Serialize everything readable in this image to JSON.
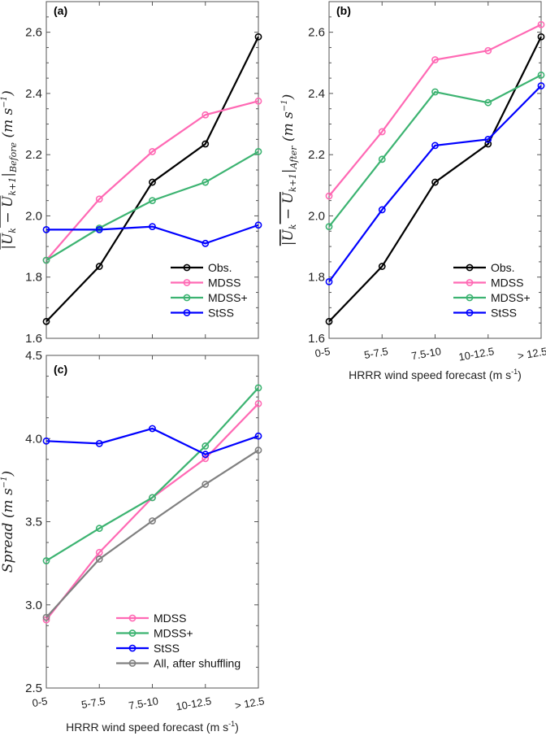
{
  "chart_data": [
    {
      "type": "line",
      "panel_label": "(a)",
      "categories": [
        "0-5",
        "5-7.5",
        "7.5-10",
        "10-12.5",
        "> 12.5"
      ],
      "show_xticklabels": false,
      "xlabel": "",
      "ylabel": {
        "main": "|U",
        "sub1": "k",
        "mid": " − U",
        "sub2": "k+1",
        "close": "|",
        "sub3": "Before",
        "unit": " (m s",
        "exp": "−1",
        "end": ")"
      },
      "ylim": [
        1.6,
        2.7
      ],
      "yticks": [
        "1.6",
        "1.8",
        "2.0",
        "2.2",
        "2.4",
        "2.6"
      ],
      "grid": false,
      "legend_placement": "bottom-right",
      "series": [
        {
          "name": "Obs.",
          "color": "#000000",
          "values": [
            1.655,
            1.835,
            2.11,
            2.235,
            2.585
          ]
        },
        {
          "name": "MDSS",
          "color": "#ff69b4",
          "values": [
            1.855,
            2.055,
            2.21,
            2.33,
            2.375
          ]
        },
        {
          "name": "MDSS+",
          "color": "#3cb371",
          "values": [
            1.855,
            1.96,
            2.05,
            2.11,
            2.21
          ]
        },
        {
          "name": "StSS",
          "color": "#0000ff",
          "values": [
            1.955,
            1.955,
            1.965,
            1.91,
            1.97
          ]
        }
      ]
    },
    {
      "type": "line",
      "panel_label": "(b)",
      "categories": [
        "0-5",
        "5-7.5",
        "7.5-10",
        "10-12.5",
        "> 12.5"
      ],
      "show_xticklabels": true,
      "xlabel": {
        "text": "HRRR wind speed forecast (m s",
        "exp": "-1",
        "end": ")"
      },
      "ylabel": {
        "main": "|U",
        "sub1": "k",
        "mid": " − U",
        "sub2": "k+1",
        "close": "|",
        "sub3": "After",
        "unit": " (m s",
        "exp": "−1",
        "end": ")"
      },
      "ylim": [
        1.6,
        2.7
      ],
      "yticks": [
        "1.6",
        "1.8",
        "2.0",
        "2.2",
        "2.4",
        "2.6"
      ],
      "grid": false,
      "legend_placement": "bottom-right",
      "series": [
        {
          "name": "Obs.",
          "color": "#000000",
          "values": [
            1.655,
            1.835,
            2.11,
            2.235,
            2.585
          ]
        },
        {
          "name": "MDSS",
          "color": "#ff69b4",
          "values": [
            2.065,
            2.275,
            2.51,
            2.54,
            2.625
          ]
        },
        {
          "name": "MDSS+",
          "color": "#3cb371",
          "values": [
            1.965,
            2.185,
            2.405,
            2.37,
            2.46
          ]
        },
        {
          "name": "StSS",
          "color": "#0000ff",
          "values": [
            1.785,
            2.02,
            2.23,
            2.25,
            2.425
          ]
        }
      ]
    },
    {
      "type": "line",
      "panel_label": "(c)",
      "categories": [
        "0-5",
        "5-7.5",
        "7.5-10",
        "10-12.5",
        "> 12.5"
      ],
      "show_xticklabels": true,
      "xlabel": {
        "text": "HRRR wind speed forecast (m s",
        "exp": "-1",
        "end": ")"
      },
      "ylabel": {
        "main": "Spread",
        "unit": " (m s",
        "exp": "−1",
        "end": ")"
      },
      "ylim": [
        2.5,
        4.5
      ],
      "yticks": [
        "2.5",
        "3.0",
        "3.5",
        "4.0",
        "4.5"
      ],
      "grid": false,
      "legend_placement": "bottom-right",
      "series": [
        {
          "name": "MDSS",
          "color": "#ff69b4",
          "values": [
            2.91,
            3.315,
            3.645,
            3.88,
            4.21
          ]
        },
        {
          "name": "MDSS+",
          "color": "#3cb371",
          "values": [
            3.265,
            3.46,
            3.645,
            3.955,
            4.305
          ]
        },
        {
          "name": "StSS",
          "color": "#0000ff",
          "values": [
            3.985,
            3.97,
            4.06,
            3.905,
            4.015
          ]
        },
        {
          "name": "All, after shuffling",
          "color": "#808080",
          "values": [
            2.925,
            3.275,
            3.505,
            3.725,
            3.93
          ]
        }
      ]
    }
  ]
}
